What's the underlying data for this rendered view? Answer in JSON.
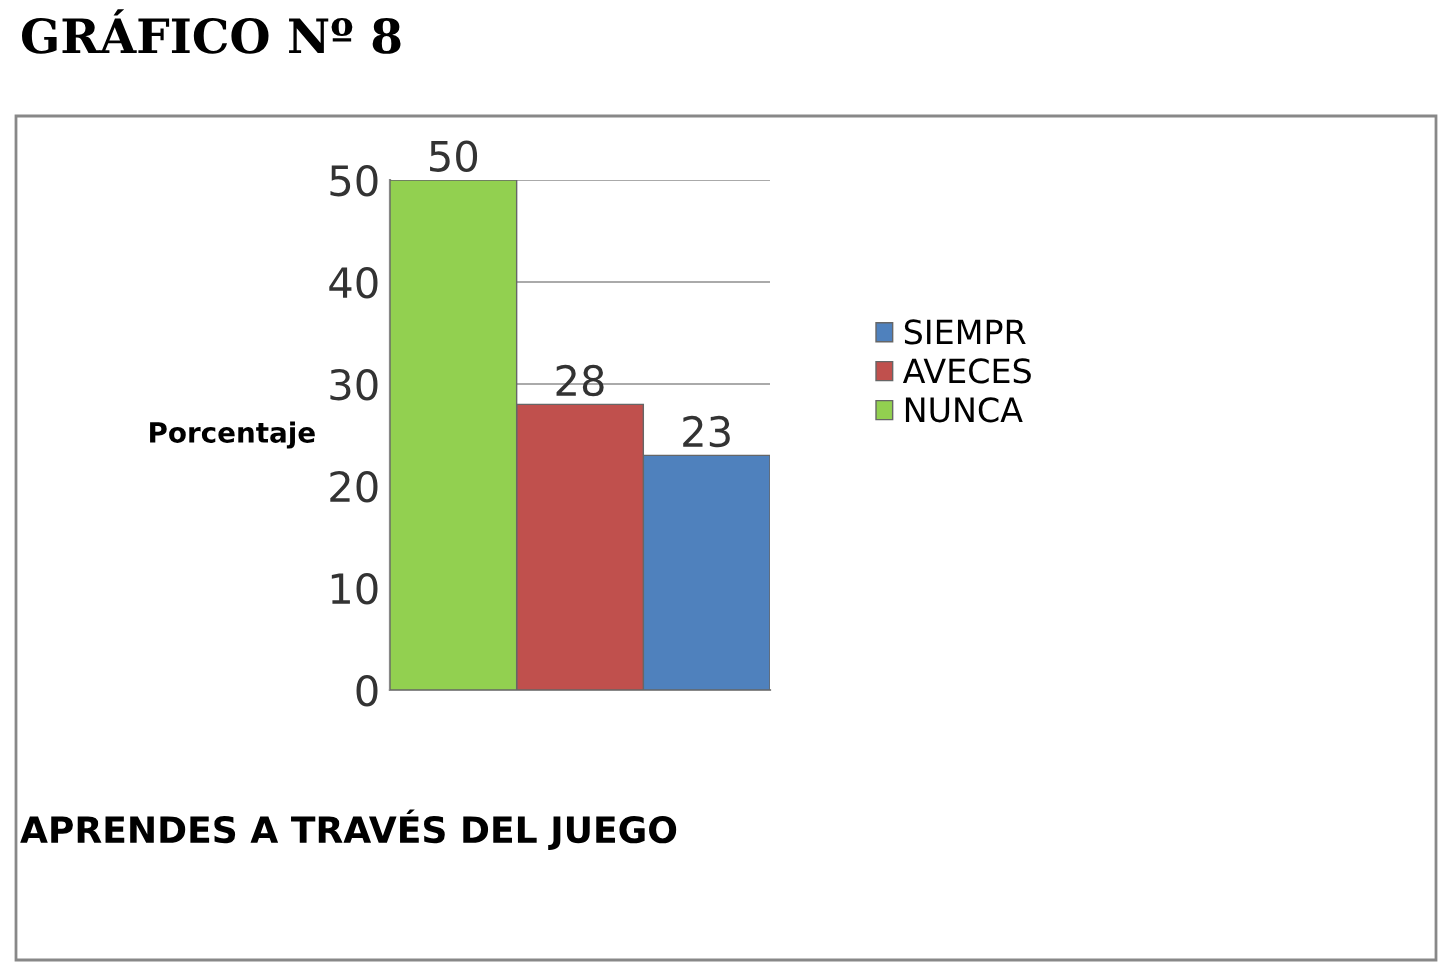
{
  "chart_data": {
    "type": "bar",
    "title": "GRÁFICO Nº 8",
    "xlabel": "APRENDES A TRAVÉS DEL JUEGO",
    "ylabel": "Porcentaje",
    "categories": [
      null,
      null,
      null
    ],
    "series": [
      {
        "name": "SIEMPR",
        "color": "#4f81bd",
        "values": [
          null,
          null,
          23
        ]
      },
      {
        "name": "AVECES",
        "color": "#c0504d",
        "values": [
          null,
          28,
          null
        ]
      },
      {
        "name": "NUNCA",
        "color": "#92d050",
        "values": [
          50,
          null,
          null
        ]
      }
    ],
    "ylim": [
      0,
      50
    ],
    "yticks": [
      0,
      10,
      20,
      30,
      40,
      50
    ],
    "grid": "y",
    "legend": "right",
    "data_labels": true
  }
}
